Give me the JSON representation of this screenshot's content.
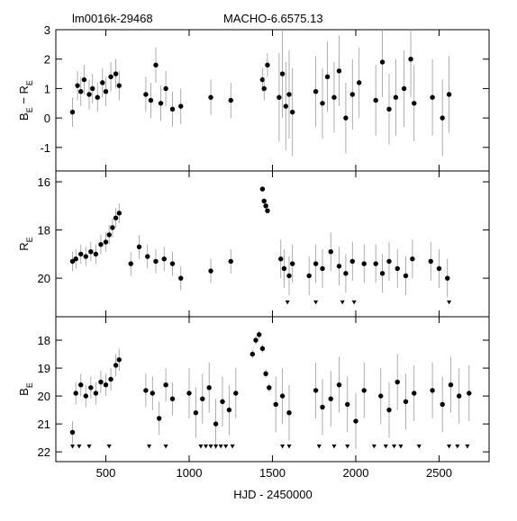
{
  "chart_data": [
    {
      "type": "scatter",
      "title": "lm0016k-29468",
      "subtitle": "MACHO-6.6575.13",
      "ylabel": [
        {
          "text": "B",
          "sub": false
        },
        {
          "text": "E",
          "sub": true
        },
        {
          "text": " − R",
          "sub": false
        },
        {
          "text": "E",
          "sub": true
        }
      ],
      "xlim": [
        200,
        2800
      ],
      "ylim": [
        -1.8,
        3
      ],
      "xticks": [
        500,
        1000,
        1500,
        2000,
        2500
      ],
      "yticks": [
        -1,
        0,
        1,
        2,
        3
      ],
      "color": "#000000",
      "error_color": "#999999",
      "x": [
        300,
        330,
        350,
        370,
        400,
        420,
        450,
        480,
        500,
        530,
        560,
        580,
        740,
        770,
        800,
        830,
        860,
        900,
        950,
        1130,
        1250,
        1440,
        1450,
        1470,
        1540,
        1560,
        1580,
        1600,
        1620,
        1760,
        1800,
        1830,
        1870,
        1900,
        1940,
        1980,
        2020,
        2120,
        2160,
        2200,
        2240,
        2290,
        2330,
        2350,
        2460,
        2520,
        2560
      ],
      "values": [
        0.2,
        1.1,
        0.9,
        1.3,
        0.8,
        1.0,
        0.7,
        1.2,
        0.9,
        1.4,
        1.5,
        1.1,
        0.8,
        0.6,
        1.8,
        0.5,
        1.0,
        0.3,
        0.4,
        0.7,
        0.6,
        1.3,
        1.0,
        1.8,
        0.7,
        1.5,
        0.4,
        0.8,
        0.2,
        0.9,
        0.5,
        1.4,
        0.7,
        1.6,
        0.0,
        0.8,
        1.2,
        0.6,
        1.9,
        0.3,
        0.7,
        1.0,
        2.0,
        0.5,
        0.7,
        0.0,
        0.8
      ],
      "errors": [
        0.5,
        0.5,
        0.5,
        0.5,
        0.5,
        0.5,
        0.5,
        0.5,
        0.5,
        0.5,
        0.5,
        0.5,
        0.6,
        0.6,
        0.6,
        0.6,
        0.6,
        0.6,
        0.6,
        0.6,
        0.6,
        0.4,
        0.4,
        0.4,
        1.5,
        1.5,
        1.5,
        1.5,
        1.5,
        1.2,
        1.2,
        1.2,
        1.2,
        1.2,
        1.2,
        1.2,
        1.2,
        1.2,
        1.2,
        1.2,
        1.3,
        1.3,
        1.3,
        1.3,
        1.3,
        1.3,
        1.3
      ]
    },
    {
      "type": "scatter",
      "ylabel": [
        {
          "text": "R",
          "sub": false
        },
        {
          "text": "E",
          "sub": true
        }
      ],
      "xlim": [
        200,
        2800
      ],
      "ylim": [
        21.6,
        15.55
      ],
      "xticks": [
        500,
        1000,
        1500,
        2000,
        2500
      ],
      "yticks": [
        16,
        18,
        20
      ],
      "color": "#000000",
      "error_color": "#999999",
      "x": [
        300,
        320,
        350,
        380,
        410,
        440,
        470,
        500,
        520,
        540,
        560,
        580,
        650,
        700,
        750,
        800,
        850,
        900,
        950,
        1130,
        1250,
        1440,
        1450,
        1460,
        1470,
        1550,
        1570,
        1600,
        1620,
        1720,
        1760,
        1800,
        1850,
        1900,
        1940,
        1980,
        2050,
        2120,
        2160,
        2200,
        2250,
        2300,
        2340,
        2450,
        2500,
        2550
      ],
      "values": [
        19.3,
        19.2,
        19.0,
        19.1,
        18.9,
        19.0,
        18.6,
        18.5,
        18.2,
        17.9,
        17.5,
        17.3,
        19.4,
        18.7,
        19.1,
        19.3,
        19.2,
        19.4,
        20.0,
        19.7,
        19.3,
        16.3,
        16.8,
        17.0,
        17.2,
        19.2,
        19.6,
        19.9,
        19.4,
        19.9,
        19.4,
        19.6,
        18.9,
        19.5,
        19.8,
        19.3,
        19.4,
        19.4,
        19.8,
        19.3,
        19.6,
        19.9,
        19.2,
        19.3,
        19.6,
        20.0
      ],
      "errors": [
        0.4,
        0.4,
        0.4,
        0.4,
        0.4,
        0.4,
        0.4,
        0.4,
        0.4,
        0.4,
        0.4,
        0.4,
        0.5,
        0.5,
        0.5,
        0.5,
        0.5,
        0.5,
        0.5,
        0.5,
        0.5,
        0.1,
        0.1,
        0.1,
        0.1,
        0.8,
        0.8,
        0.8,
        0.8,
        0.8,
        0.8,
        0.8,
        0.8,
        0.8,
        0.8,
        0.8,
        0.8,
        0.8,
        0.8,
        0.8,
        0.8,
        0.8,
        0.8,
        0.8,
        0.8,
        0.8
      ],
      "limits": {
        "x": [
          1590,
          1760,
          1920,
          1990,
          2560
        ],
        "values": [
          21.0,
          21.0,
          21.0,
          21.0,
          21.0
        ]
      }
    },
    {
      "type": "scatter",
      "ylabel": [
        {
          "text": "B",
          "sub": false
        },
        {
          "text": "E",
          "sub": true
        }
      ],
      "xlabel": "HJD - 2450000",
      "xlim": [
        200,
        2800
      ],
      "ylim": [
        22.35,
        17.16
      ],
      "xticks": [
        500,
        1000,
        1500,
        2000,
        2500
      ],
      "yticks": [
        18,
        19,
        20,
        21,
        22
      ],
      "color": "#000000",
      "error_color": "#999999",
      "x": [
        300,
        320,
        350,
        380,
        410,
        440,
        470,
        500,
        530,
        560,
        580,
        740,
        780,
        820,
        860,
        900,
        1000,
        1040,
        1080,
        1120,
        1160,
        1200,
        1240,
        1280,
        1380,
        1400,
        1420,
        1440,
        1460,
        1480,
        1520,
        1560,
        1600,
        1760,
        1800,
        1850,
        1900,
        1950,
        2000,
        2050,
        2150,
        2200,
        2250,
        2300,
        2350,
        2460,
        2520,
        2570,
        2620,
        2680
      ],
      "values": [
        21.3,
        19.9,
        19.6,
        20.0,
        19.7,
        19.9,
        19.5,
        19.6,
        19.4,
        18.9,
        18.7,
        19.8,
        19.9,
        20.8,
        19.6,
        20.1,
        19.9,
        20.6,
        20.1,
        19.7,
        21.0,
        20.2,
        20.5,
        19.9,
        18.5,
        18.0,
        17.8,
        18.3,
        19.2,
        19.7,
        20.3,
        20.0,
        20.6,
        19.8,
        20.4,
        20.1,
        19.6,
        20.3,
        20.9,
        19.8,
        20.0,
        20.5,
        19.5,
        20.2,
        19.9,
        19.8,
        20.3,
        19.6,
        20.0,
        19.9
      ],
      "errors": [
        0.4,
        0.4,
        0.4,
        0.4,
        0.4,
        0.4,
        0.4,
        0.4,
        0.4,
        0.4,
        0.4,
        0.6,
        0.6,
        0.6,
        0.6,
        0.6,
        0.9,
        0.9,
        0.9,
        0.9,
        0.9,
        0.9,
        0.9,
        0.9,
        0.15,
        0.15,
        0.15,
        0.15,
        0.15,
        0.15,
        1.0,
        1.0,
        1.0,
        1.0,
        1.0,
        1.0,
        1.0,
        1.0,
        1.0,
        1.0,
        1.0,
        1.0,
        1.0,
        1.0,
        1.0,
        1.0,
        1.0,
        1.0,
        1.0,
        1.0
      ],
      "limits": {
        "x": [
          300,
          340,
          400,
          520,
          760,
          860,
          1070,
          1100,
          1130,
          1160,
          1190,
          1220,
          1260,
          1560,
          1600,
          1780,
          1870,
          1950,
          2110,
          2180,
          2230,
          2270,
          2380,
          2560,
          2610,
          2670
        ],
        "values": [
          21.8,
          21.8,
          21.8,
          21.8,
          21.8,
          21.8,
          21.8,
          21.8,
          21.8,
          21.8,
          21.8,
          21.8,
          21.8,
          21.8,
          21.8,
          21.8,
          21.8,
          21.8,
          21.8,
          21.8,
          21.8,
          21.8,
          21.8,
          21.8,
          21.8,
          21.8
        ]
      }
    }
  ]
}
